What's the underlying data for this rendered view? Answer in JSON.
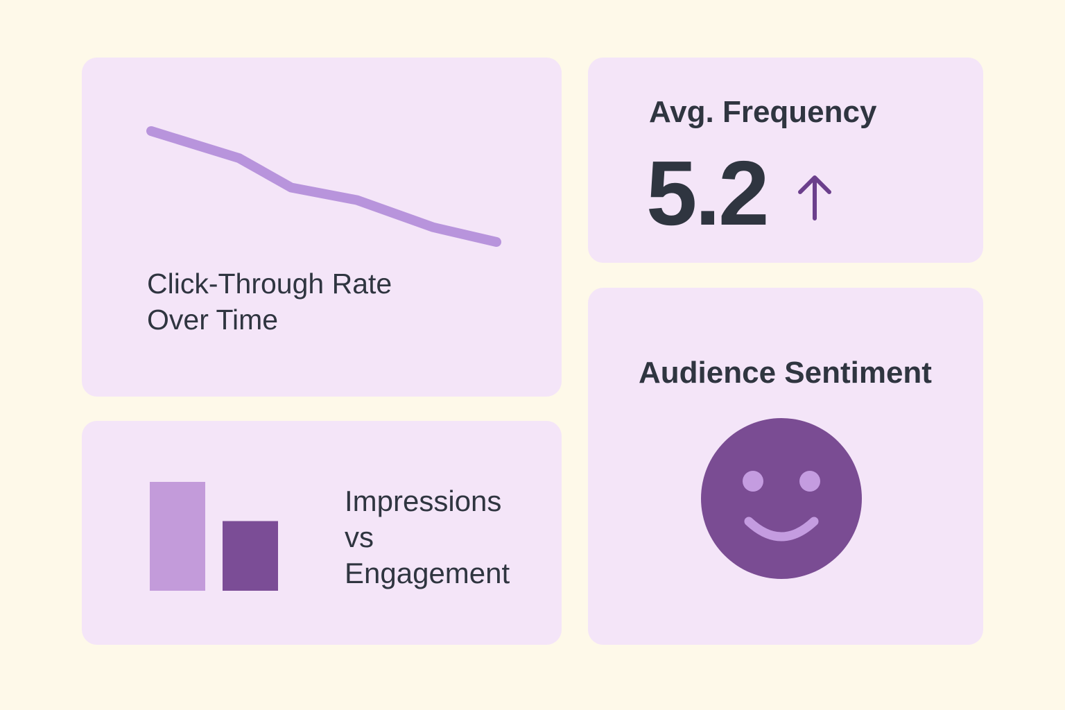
{
  "cards": {
    "ctr": {
      "title_line1": "Click-Through Rate",
      "title_line2": "Over Time"
    },
    "frequency": {
      "title": "Avg. Frequency",
      "value": "5.2",
      "trend": "up",
      "trend_icon": "arrow-up-icon"
    },
    "impressions": {
      "title_line1": "Impressions",
      "title_line2": "vs",
      "title_line3": "Engagement"
    },
    "sentiment": {
      "title": "Audience Sentiment",
      "icon": "smiley-face-icon"
    }
  },
  "colors": {
    "background": "#FEF9E9",
    "card": "#F4E5F8",
    "line": "#B894DC",
    "bar_light": "#C39BDA",
    "bar_dark": "#7B4D96",
    "text": "#2F3540",
    "arrow": "#6B3F8C",
    "face": "#7A4C93",
    "face_features": "#C49CE0"
  },
  "chart_data": [
    {
      "type": "line",
      "title": "Click-Through Rate Over Time",
      "x": [
        1,
        2,
        3,
        4,
        5,
        6
      ],
      "y": [
        100,
        87,
        73,
        67,
        54,
        47
      ],
      "ylim": [
        0,
        110
      ],
      "grid": false
    },
    {
      "type": "bar",
      "title": "Impressions vs Engagement",
      "categories": [
        "Impressions",
        "Engagement"
      ],
      "values": [
        100,
        64
      ],
      "ylim": [
        0,
        100
      ]
    }
  ]
}
